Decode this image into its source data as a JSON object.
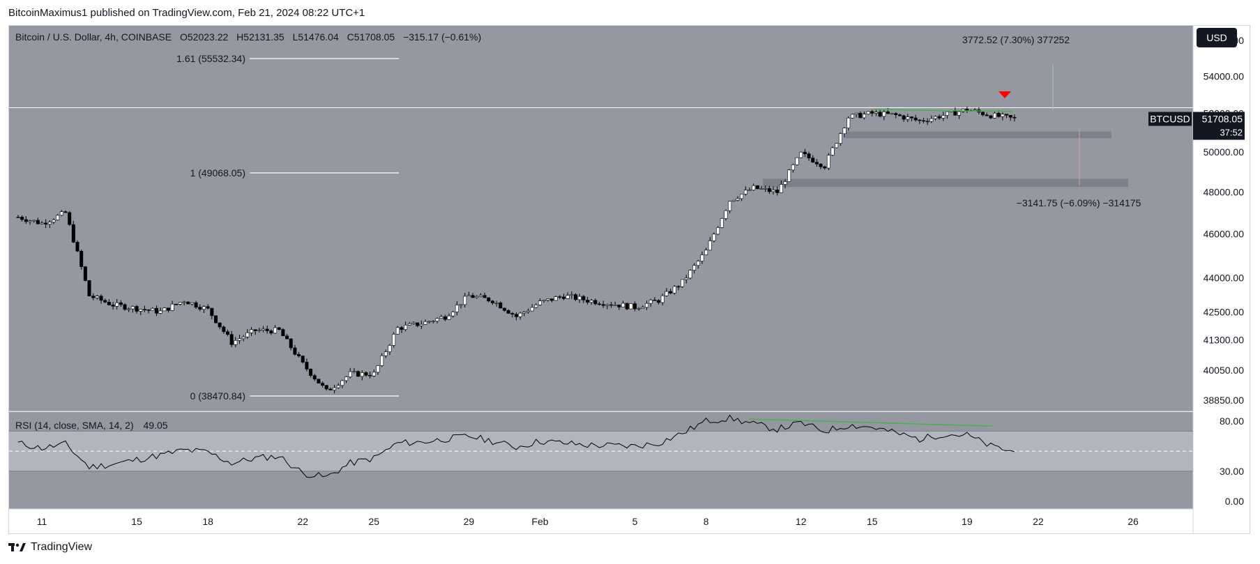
{
  "attribution": "BitcoinMaximus1 published on TradingView.com, Feb 21, 2024 08:22 UTC+1",
  "brand": "TradingView",
  "header": {
    "symbol": "Bitcoin / U.S. Dollar, 4h, COINBASE",
    "open": "O52023.22",
    "high": "H52131.35",
    "low": "L51476.04",
    "close": "C51708.05",
    "change": "−315.17 (−0.61%)"
  },
  "currency_button": "USD",
  "price_tag": {
    "symbol": "BTCUSD",
    "price": "51708.05",
    "countdown": "37:52"
  },
  "rsi_header": {
    "label": "RSI (14, close, SMA, 14, 2)",
    "value": "49.05"
  },
  "measure_up": "3772.52 (7.30%) 377252",
  "measure_down": "−3141.75 (−6.09%) −314175",
  "colors": {
    "pane_bg": "#9598a1",
    "rsi_band": "#b2b5be",
    "candle_up": "#ffffff",
    "candle_down": "#000000",
    "divergence": "#4caf50",
    "signal_arrow": "#ff0000",
    "zone": "#787b86"
  },
  "chart_data": [
    {
      "type": "candlestick",
      "symbol": "BTCUSD",
      "timeframe": "4h",
      "exchange": "COINBASE",
      "x_tick_labels": [
        "11",
        "15",
        "18",
        "22",
        "25",
        "29",
        "Feb",
        "5",
        "8",
        "12",
        "15",
        "19",
        "22",
        "26"
      ],
      "y_tick_labels": [
        "56000.00",
        "54000.00",
        "52000.00",
        "50000.00",
        "48000.00",
        "46000.00",
        "44000.00",
        "42500.00",
        "41300.00",
        "40050.00",
        "38850.00"
      ],
      "y_scale": "log",
      "ylim": [
        37700,
        57000
      ],
      "price_path": {
        "x": [
          "Jan 10",
          "Jan 11",
          "Jan 12",
          "Jan 13",
          "Jan 14",
          "Jan 16",
          "Jan 17",
          "Jan 18",
          "Jan 19",
          "Jan 20",
          "Jan 21",
          "Jan 22",
          "Jan 23",
          "Jan 24",
          "Jan 25",
          "Jan 26",
          "Jan 27",
          "Jan 28",
          "Jan 29",
          "Jan 30",
          "Jan 31",
          "Feb 1",
          "Feb 2",
          "Feb 3",
          "Feb 5",
          "Feb 6",
          "Feb 7",
          "Feb 8",
          "Feb 9",
          "Feb 10",
          "Feb 11",
          "Feb 12",
          "Feb 13",
          "Feb 14",
          "Feb 15",
          "Feb 16",
          "Feb 17",
          "Feb 18",
          "Feb 19",
          "Feb 20",
          "Feb 21"
        ],
        "close": [
          46800,
          46500,
          47000,
          43200,
          42800,
          42500,
          43000,
          42600,
          41200,
          41700,
          41700,
          40300,
          39200,
          39900,
          39900,
          41800,
          42000,
          42300,
          43200,
          43000,
          42300,
          42900,
          43200,
          43000,
          42700,
          43000,
          43800,
          45200,
          47600,
          48200,
          48000,
          49900,
          49300,
          51800,
          52000,
          51900,
          51600,
          51900,
          52200,
          51900,
          51708
        ]
      },
      "fibonacci": [
        {
          "label": "1.61 (55532.34)",
          "level": 55532.34
        },
        {
          "label": "1 (49068.05)",
          "level": 49068.05
        },
        {
          "label": "0 (38470.84)",
          "level": 38470.84
        }
      ],
      "resistance_line": 52300,
      "support_zones": [
        {
          "low": 50700,
          "high": 51050
        },
        {
          "low": 48250,
          "high": 48650
        }
      ],
      "rsi": {
        "y_tick_labels": [
          "80.00",
          "30.00",
          "0.00"
        ],
        "ylim": [
          0,
          100
        ],
        "band": [
          30,
          70
        ],
        "midline": 50,
        "values": [
          58,
          53,
          57,
          34,
          37,
          46,
          51,
          49,
          38,
          43,
          45,
          28,
          24,
          38,
          43,
          58,
          59,
          62,
          65,
          60,
          54,
          60,
          58,
          56,
          55,
          58,
          68,
          80,
          83,
          77,
          72,
          78,
          70,
          76,
          74,
          68,
          62,
          67,
          66,
          55,
          49
        ]
      }
    }
  ]
}
